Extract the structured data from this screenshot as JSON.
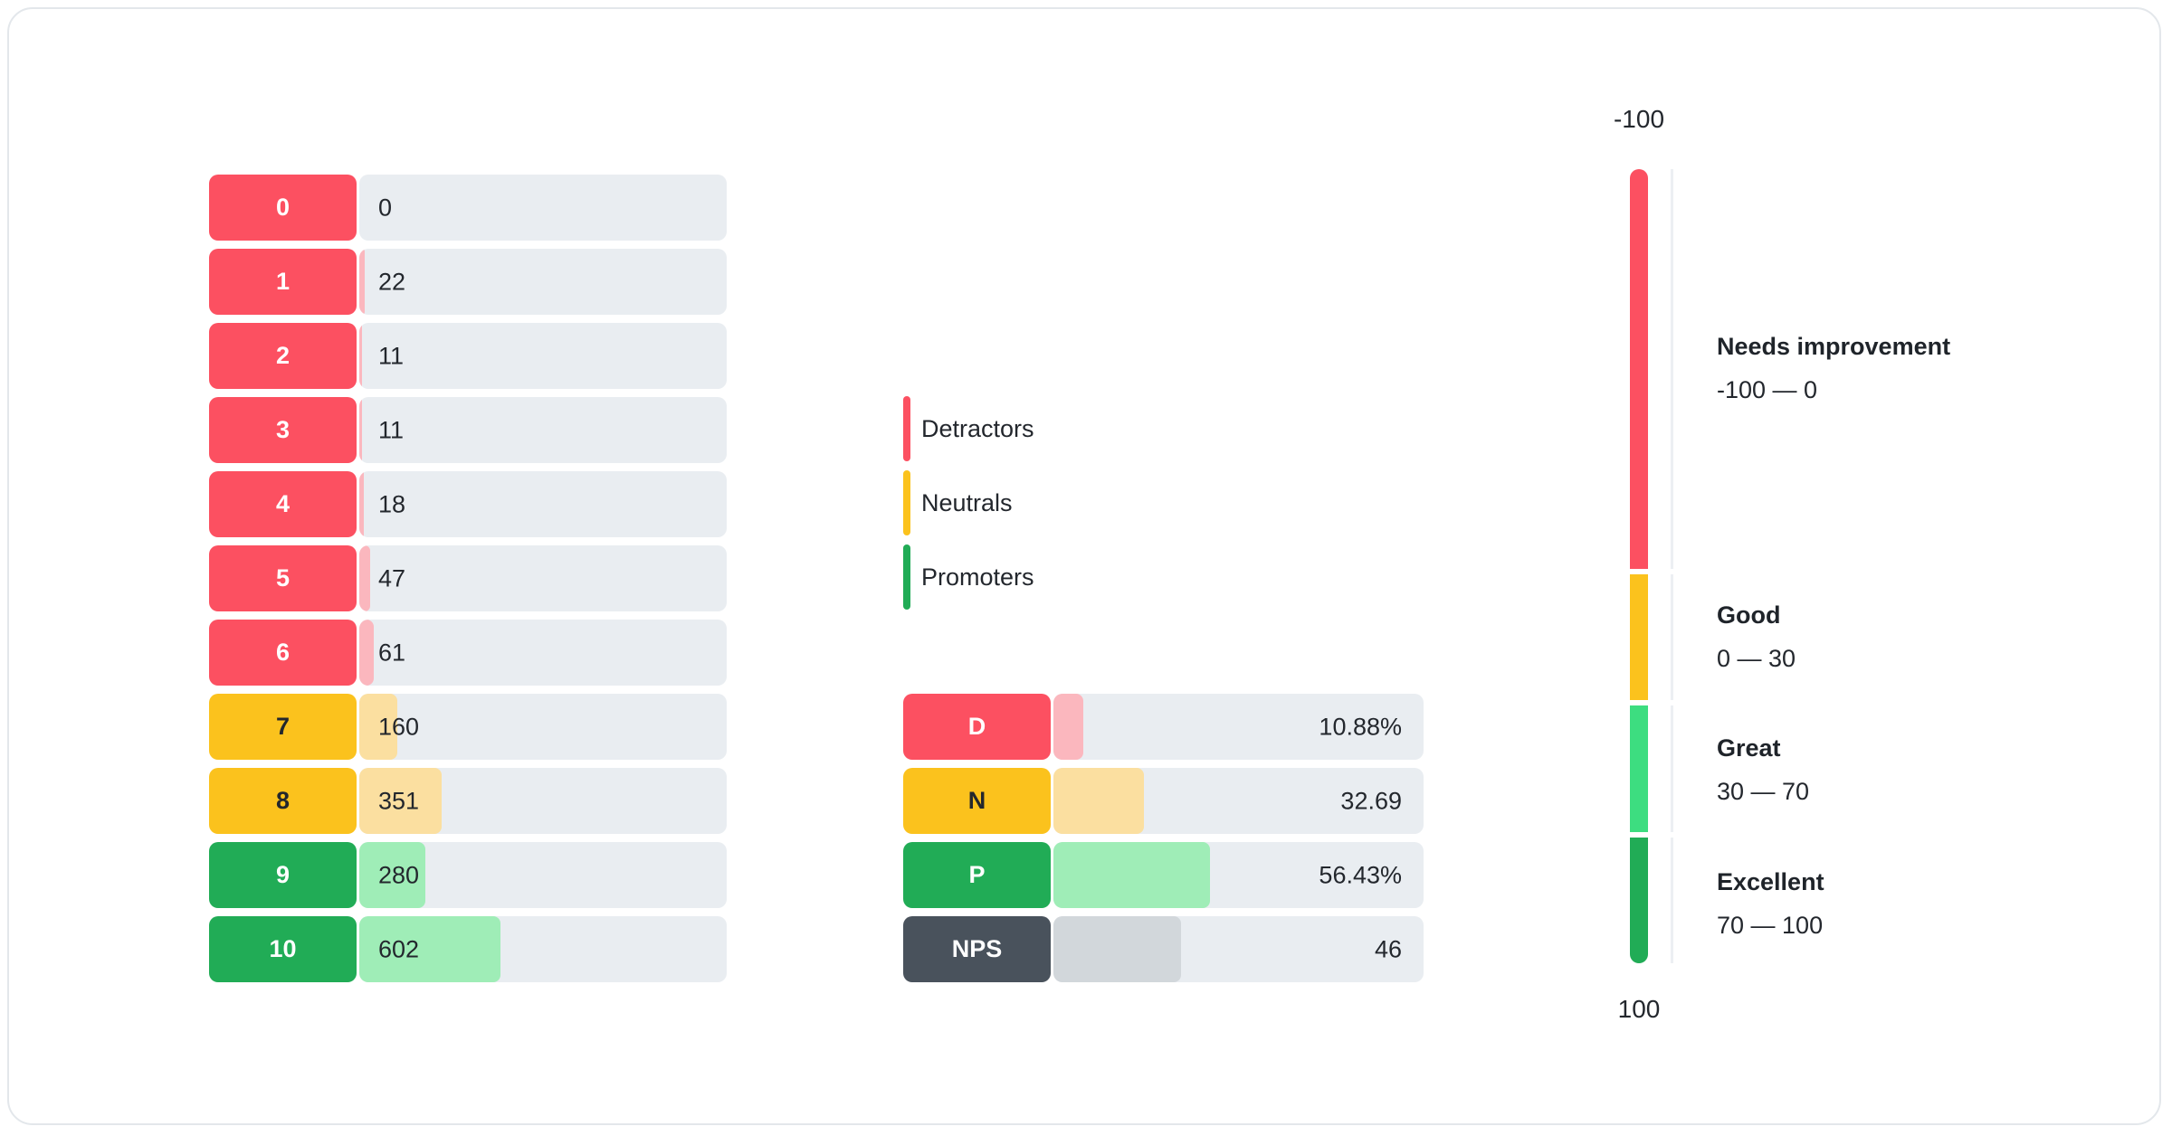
{
  "colors": {
    "detractor": "#FC5061",
    "neutral": "#FBC21D",
    "promoter": "#21AC56",
    "nps": "#49525C",
    "detractor_light": "#FBB7BE",
    "neutral_light": "#FBDFA0",
    "promoter_light": "#9FEDB7",
    "nps_light": "#D2D7DB",
    "track": "#E9EDF1",
    "gauge_great": "#3DDD80",
    "text": "#23272D"
  },
  "distribution": {
    "rows": [
      {
        "score": "0",
        "count": "0",
        "group": "detractor"
      },
      {
        "score": "1",
        "count": "22",
        "group": "detractor"
      },
      {
        "score": "2",
        "count": "11",
        "group": "detractor"
      },
      {
        "score": "3",
        "count": "11",
        "group": "detractor"
      },
      {
        "score": "4",
        "count": "18",
        "group": "detractor"
      },
      {
        "score": "5",
        "count": "47",
        "group": "detractor"
      },
      {
        "score": "6",
        "count": "61",
        "group": "detractor"
      },
      {
        "score": "7",
        "count": "160",
        "group": "neutral"
      },
      {
        "score": "8",
        "count": "351",
        "group": "neutral"
      },
      {
        "score": "9",
        "count": "280",
        "group": "promoter"
      },
      {
        "score": "10",
        "count": "602",
        "group": "promoter"
      }
    ]
  },
  "legend": {
    "items": [
      {
        "label": "Detractors",
        "group": "detractor"
      },
      {
        "label": "Neutrals",
        "group": "neutral"
      },
      {
        "label": "Promoters",
        "group": "promoter"
      }
    ]
  },
  "summary": {
    "rows": [
      {
        "label": "D",
        "value": "10.88%",
        "group": "detractor"
      },
      {
        "label": "N",
        "value": "32.69",
        "group": "neutral"
      },
      {
        "label": "P",
        "value": "56.43%",
        "group": "promoter"
      },
      {
        "label": "NPS",
        "value": "46",
        "group": "nps"
      }
    ]
  },
  "gauge": {
    "top_label": "-100",
    "bottom_label": "100",
    "bands": [
      {
        "name": "Needs improvement",
        "range": "-100 — 0"
      },
      {
        "name": "Good",
        "range": "0 — 30"
      },
      {
        "name": "Great",
        "range": "30 — 70"
      },
      {
        "name": "Excellent",
        "range": "70 — 100"
      }
    ]
  },
  "chart_data": [
    {
      "type": "bar",
      "orientation": "horizontal",
      "categories": [
        "0",
        "1",
        "2",
        "3",
        "4",
        "5",
        "6",
        "7",
        "8",
        "9",
        "10"
      ],
      "values": [
        0,
        22,
        11,
        11,
        18,
        47,
        61,
        160,
        351,
        280,
        602
      ],
      "series_groups": {
        "detractors_scores_0_6": [
          0,
          22,
          11,
          11,
          18,
          47,
          61
        ],
        "neutrals_scores_7_8": [
          160,
          351
        ],
        "promoters_scores_9_10": [
          280,
          602
        ]
      },
      "title": "",
      "xlabel": "",
      "ylabel": "",
      "legend_position": "right",
      "grid": false
    },
    {
      "type": "bar",
      "orientation": "horizontal",
      "categories": [
        "D",
        "N",
        "P",
        "NPS"
      ],
      "values": [
        10.88,
        32.69,
        56.43,
        46
      ],
      "value_labels": [
        "10.88%",
        "32.69",
        "56.43%",
        "46"
      ],
      "title": "",
      "grid": false
    },
    {
      "type": "gauge",
      "orientation": "vertical",
      "axis_range": [
        -100,
        100
      ],
      "bands": [
        {
          "label": "Needs improvement",
          "from": -100,
          "to": 0
        },
        {
          "label": "Good",
          "from": 0,
          "to": 30
        },
        {
          "label": "Great",
          "from": 30,
          "to": 70
        },
        {
          "label": "Excellent",
          "from": 70,
          "to": 100
        }
      ]
    }
  ]
}
